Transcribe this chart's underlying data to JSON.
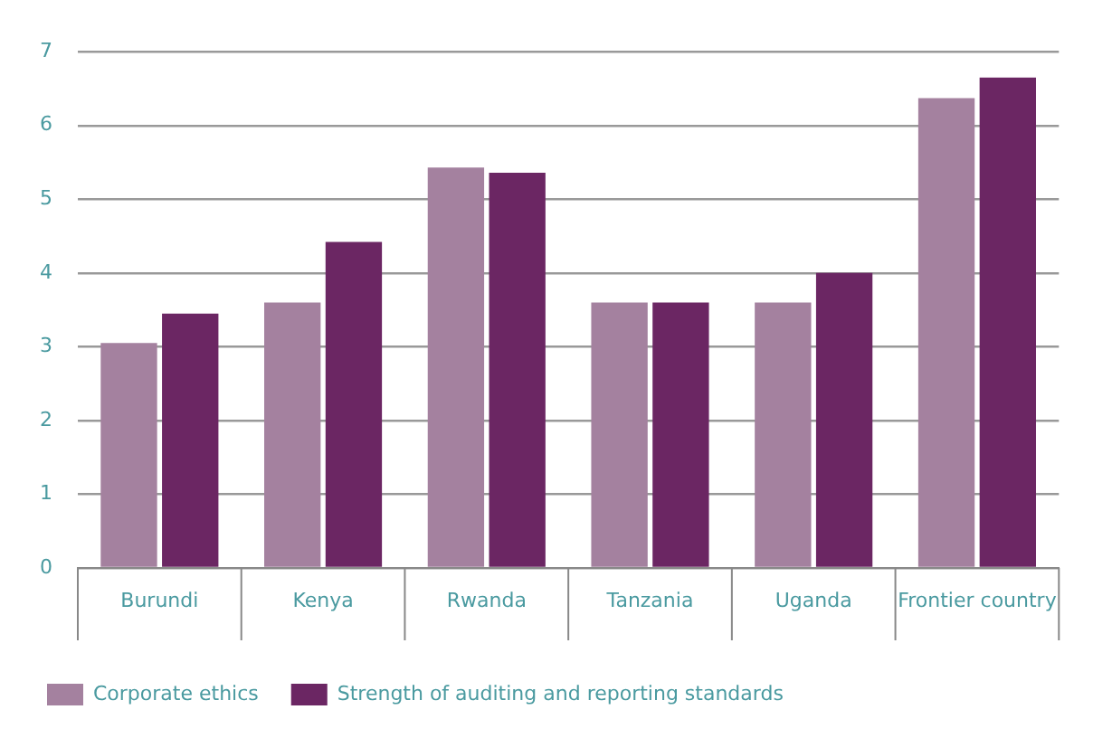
{
  "chart_data": {
    "type": "bar",
    "categories": [
      "Burundi",
      "Kenya",
      "Rwanda",
      "Tanzania",
      "Uganda",
      "Frontier country"
    ],
    "series": [
      {
        "name": "Corporate ethics",
        "color": "#a4819f",
        "values": [
          3.05,
          3.6,
          5.43,
          3.6,
          3.6,
          6.37
        ]
      },
      {
        "name": "Strength of auditing and reporting standards",
        "color": "#6b2663",
        "values": [
          3.45,
          4.42,
          5.36,
          3.6,
          4.0,
          6.65
        ]
      }
    ],
    "ylim": [
      0,
      7
    ],
    "yticks": [
      0,
      1,
      2,
      3,
      4,
      5,
      6,
      7
    ],
    "grid": "y",
    "legend": "bottom left"
  }
}
